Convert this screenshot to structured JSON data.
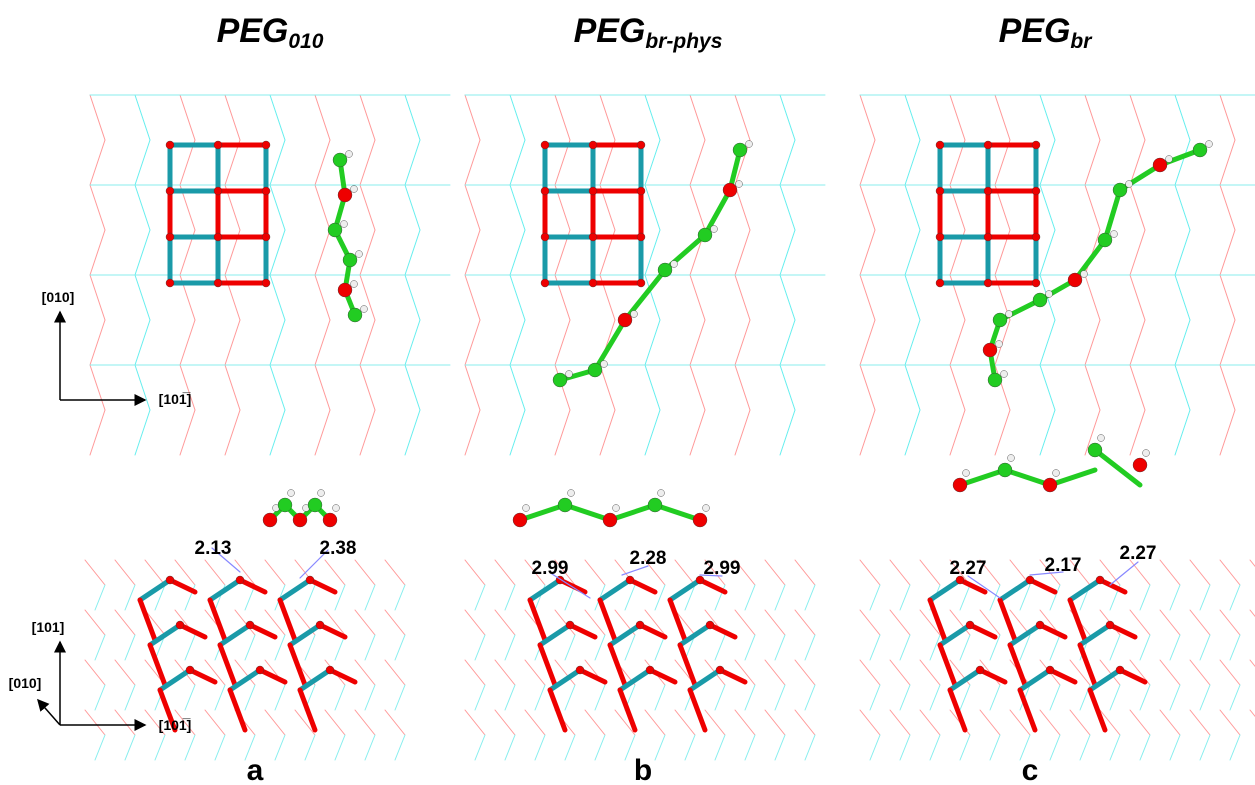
{
  "panels": [
    {
      "title": "PEG",
      "title_sub": "010",
      "letter": "a",
      "distances": [
        "2.13",
        "2.38"
      ]
    },
    {
      "title": "PEG",
      "title_sub": "br-phys",
      "letter": "b",
      "distances": [
        "2.99",
        "2.28",
        "2.99"
      ]
    },
    {
      "title": "PEG",
      "title_sub": "br",
      "letter": "c",
      "distances": [
        "2.27",
        "2.17",
        "2.27"
      ]
    }
  ],
  "axes": {
    "top": {
      "vertical": "[010]",
      "horizontal": "[101̅]"
    },
    "bottom": {
      "vertical": "[101]",
      "diagonal": "[010]",
      "horizontal": "[101̅]"
    }
  }
}
